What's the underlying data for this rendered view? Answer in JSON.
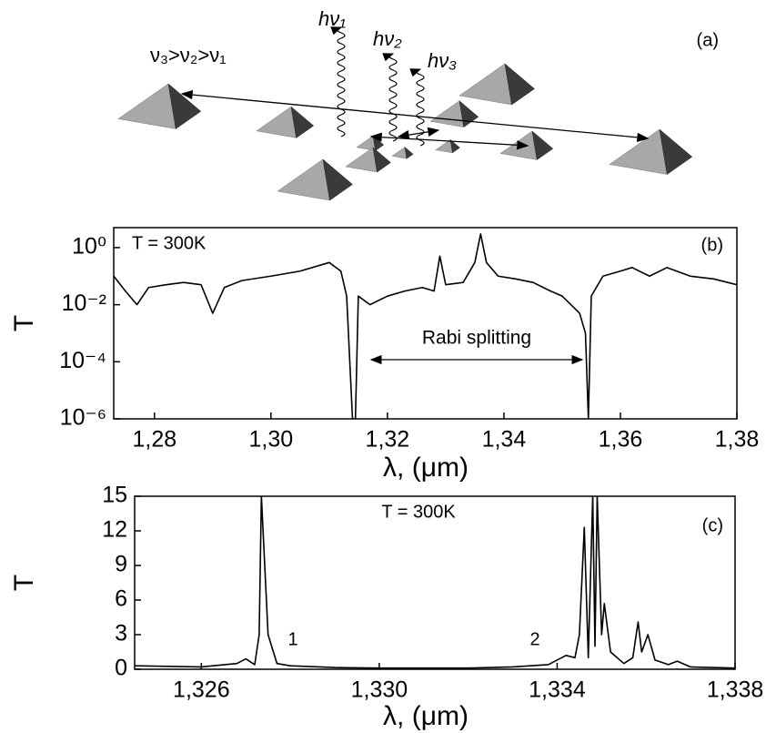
{
  "diagram": {
    "relation": "ν₃>ν₂>ν₁",
    "photons": [
      "hν₁",
      "hν₂",
      "hν₃"
    ],
    "label": "(a)"
  },
  "chart_data": [
    {
      "type": "line",
      "panel_label": "(b)",
      "annotation": "T = 300K",
      "arrow_label": "Rabi splitting",
      "x_label": "λ, (μm)",
      "y_label": "T",
      "log_y": true,
      "color": "#000000",
      "xlim": [
        1.273,
        1.38
      ],
      "ylim": [
        1e-06,
        5
      ],
      "xticks": [
        {
          "value": 1.28,
          "label": "1,28"
        },
        {
          "value": 1.3,
          "label": "1,30"
        },
        {
          "value": 1.32,
          "label": "1,32"
        },
        {
          "value": 1.34,
          "label": "1,34"
        },
        {
          "value": 1.36,
          "label": "1,36"
        },
        {
          "value": 1.38,
          "label": "1,38"
        }
      ],
      "yticks": [
        {
          "value": 1,
          "label": "10⁰"
        },
        {
          "value": 0.01,
          "label": "10⁻²"
        },
        {
          "value": 0.0001,
          "label": "10⁻⁴"
        },
        {
          "value": 1e-06,
          "label": "10⁻⁶"
        }
      ],
      "x": [
        1.273,
        1.275,
        1.277,
        1.279,
        1.282,
        1.285,
        1.288,
        1.29,
        1.292,
        1.295,
        1.3,
        1.305,
        1.31,
        1.312,
        1.313,
        1.314,
        1.3145,
        1.315,
        1.317,
        1.32,
        1.323,
        1.326,
        1.328,
        1.329,
        1.33,
        1.333,
        1.335,
        1.336,
        1.337,
        1.339,
        1.342,
        1.345,
        1.348,
        1.35,
        1.353,
        1.354,
        1.3545,
        1.355,
        1.357,
        1.36,
        1.362,
        1.365,
        1.368,
        1.372,
        1.376,
        1.38
      ],
      "values": [
        0.1,
        0.03,
        0.01,
        0.04,
        0.05,
        0.06,
        0.05,
        0.005,
        0.04,
        0.07,
        0.1,
        0.15,
        0.3,
        0.15,
        0.02,
        1e-06,
        1e-06,
        0.02,
        0.01,
        0.02,
        0.03,
        0.04,
        0.03,
        0.5,
        0.05,
        0.06,
        0.3,
        3,
        0.3,
        0.1,
        0.08,
        0.06,
        0.03,
        0.02,
        0.005,
        0.001,
        1e-06,
        0.02,
        0.1,
        0.15,
        0.2,
        0.1,
        0.2,
        0.1,
        0.08,
        0.05
      ]
    },
    {
      "type": "line",
      "panel_label": "(c)",
      "annotation": "T = 300K",
      "peak_labels": [
        "1",
        "2"
      ],
      "x_label": "λ, (μm)",
      "y_label": "T",
      "log_y": false,
      "color": "#000000",
      "xlim": [
        1.3245,
        1.338
      ],
      "ylim": [
        0,
        15
      ],
      "xticks": [
        {
          "value": 1.326,
          "label": "1,326"
        },
        {
          "value": 1.33,
          "label": "1,330"
        },
        {
          "value": 1.334,
          "label": "1,334"
        },
        {
          "value": 1.338,
          "label": "1,338"
        }
      ],
      "yticks": [
        0,
        3,
        6,
        9,
        12,
        15
      ],
      "x": [
        1.3245,
        1.326,
        1.3268,
        1.327,
        1.3272,
        1.3273,
        1.32735,
        1.3275,
        1.3277,
        1.328,
        1.329,
        1.33,
        1.331,
        1.332,
        1.333,
        1.3338,
        1.3342,
        1.3344,
        1.3345,
        1.33461,
        1.3347,
        1.3348,
        1.33485,
        1.3349,
        1.335,
        1.33506,
        1.3352,
        1.3355,
        1.3357,
        1.33582,
        1.3359,
        1.33604,
        1.3362,
        1.3365,
        1.3367,
        1.337,
        1.338
      ],
      "values": [
        0.3,
        0.2,
        0.5,
        0.9,
        0.4,
        3,
        15,
        3,
        0.5,
        0.3,
        0.15,
        0.1,
        0.1,
        0.1,
        0.2,
        0.4,
        1.2,
        1.0,
        3,
        12.3,
        1,
        15,
        2,
        15,
        3,
        5.7,
        1.5,
        0.5,
        1,
        4.1,
        1.5,
        3,
        0.8,
        0.4,
        0.7,
        0.2,
        0.1
      ]
    }
  ]
}
